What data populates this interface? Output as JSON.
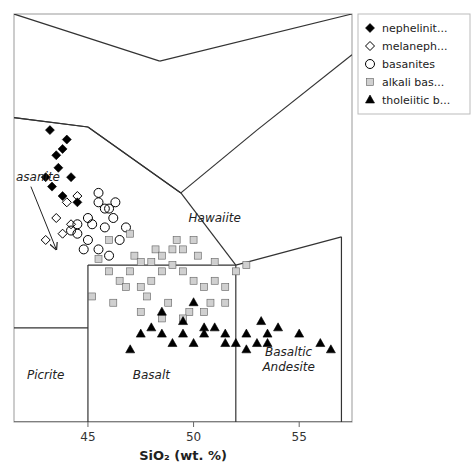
{
  "chart_data": {
    "type": "scatter",
    "xlabel": "SiO₂ (wt. %)",
    "xlim": [
      41.5,
      57.5
    ],
    "ylim": [
      0,
      13
    ],
    "xticks": [
      45,
      50,
      55
    ],
    "yticks": [],
    "tick_labels": "x",
    "grid": false,
    "legend": "upper right",
    "series": [
      {
        "name": "nephelinit...",
        "marker": "diamond",
        "color": "black",
        "x": [
          43.2,
          43.5,
          43.6,
          43.8,
          43.0,
          43.3,
          43.8,
          44.2,
          44.5,
          44.0
        ],
        "values": [
          9.3,
          8.5,
          8.1,
          8.7,
          7.8,
          7.5,
          7.2,
          7.8,
          7.0,
          9.0
        ]
      },
      {
        "name": "melaneph...",
        "marker": "diamond-open",
        "color": "black",
        "x": [
          43.5,
          44.0,
          43.8,
          44.5,
          44.2,
          43.0
        ],
        "values": [
          6.5,
          7.0,
          6.0,
          7.2,
          6.3,
          5.8
        ]
      },
      {
        "name": "basanites",
        "marker": "circle-open",
        "color": "black",
        "x": [
          44.5,
          45.0,
          45.5,
          46.0,
          45.8,
          44.8,
          45.2,
          46.2,
          46.5,
          45.5,
          46.0,
          44.5,
          45.0,
          46.8,
          45.8,
          46.3,
          44.2,
          45.5
        ],
        "values": [
          6.0,
          6.5,
          7.0,
          6.8,
          6.2,
          5.5,
          6.3,
          6.5,
          5.8,
          5.5,
          5.3,
          6.3,
          5.8,
          6.2,
          6.8,
          7.0,
          6.1,
          7.3
        ]
      },
      {
        "name": "alkali bas...",
        "marker": "square",
        "color": "#d0d0d0",
        "x": [
          45.5,
          46.0,
          46.5,
          47.0,
          47.5,
          48.0,
          48.5,
          49.0,
          49.5,
          50.0,
          50.5,
          51.0,
          47.2,
          48.2,
          49.2,
          50.2,
          46.8,
          47.8,
          48.8,
          49.8,
          50.8,
          51.5,
          52.0,
          52.5,
          45.2,
          46.2,
          47.5,
          48.5,
          49.5,
          50.5,
          51.5,
          46.0,
          47.0,
          48.0,
          49.0,
          50.0,
          51.0,
          47.5,
          48.5,
          49.5
        ],
        "values": [
          5.2,
          4.8,
          4.5,
          4.8,
          4.3,
          4.5,
          4.8,
          5.0,
          4.8,
          4.5,
          4.3,
          4.5,
          5.3,
          5.5,
          5.8,
          5.3,
          4.3,
          4.0,
          3.8,
          3.5,
          3.8,
          4.3,
          4.8,
          5.0,
          4.0,
          3.8,
          3.5,
          3.3,
          3.3,
          3.5,
          3.8,
          5.8,
          6.0,
          5.1,
          5.5,
          5.8,
          5.1,
          5.1,
          5.3,
          5.5
        ]
      },
      {
        "name": "tholeiitic b...",
        "marker": "triangle",
        "color": "black",
        "x": [
          47.5,
          48.0,
          48.5,
          49.0,
          49.5,
          50.0,
          50.5,
          51.0,
          51.5,
          52.0,
          52.5,
          53.0,
          53.5,
          54.0,
          55.0,
          56.0,
          48.5,
          49.5,
          50.5,
          51.5,
          52.5,
          53.5,
          47.0,
          50.0,
          53.2,
          56.5
        ],
        "values": [
          2.8,
          3.0,
          2.8,
          2.5,
          2.8,
          2.5,
          2.8,
          3.0,
          2.8,
          2.5,
          2.8,
          2.5,
          2.8,
          3.0,
          2.8,
          2.5,
          3.5,
          3.2,
          3.0,
          2.5,
          2.3,
          2.5,
          2.3,
          3.8,
          3.2,
          2.3
        ]
      }
    ],
    "boundaries": [
      {
        "x": [
          41.5,
          45.0
        ],
        "y": [
          0,
          0
        ]
      },
      {
        "x": [
          45.0,
          52.0
        ],
        "y": [
          0,
          0
        ]
      },
      {
        "x": [
          52.0,
          57.5
        ],
        "y": [
          0,
          0
        ]
      },
      {
        "x": [
          45.0,
          45.0
        ],
        "y": [
          0,
          5.0
        ]
      },
      {
        "x": [
          41.5,
          45.0
        ],
        "y": [
          3.0,
          3.0
        ]
      },
      {
        "x": [
          52.0,
          52.0
        ],
        "y": [
          0,
          5.0
        ]
      },
      {
        "x": [
          57.0,
          57.0
        ],
        "y": [
          0,
          5.9
        ]
      },
      {
        "x": [
          45.0,
          52.0
        ],
        "y": [
          5.0,
          5.0
        ]
      },
      {
        "x": [
          52.0,
          57.0
        ],
        "y": [
          5.0,
          5.9
        ]
      },
      {
        "x": [
          41.5,
          45.0
        ],
        "y": [
          9.7,
          9.4
        ]
      },
      {
        "x": [
          45.0,
          41.5
        ],
        "y": [
          9.4,
          9.7
        ]
      },
      {
        "x": [
          45.0,
          49.4
        ],
        "y": [
          9.4,
          7.3
        ]
      },
      {
        "x": [
          49.4,
          53.0
        ],
        "y": [
          7.3,
          9.3
        ]
      },
      {
        "x": [
          53.0,
          57.5
        ],
        "y": [
          9.3,
          11.7
        ]
      },
      {
        "x": [
          41.5,
          48.4
        ],
        "y": [
          13.0,
          11.5
        ]
      },
      {
        "x": [
          48.4,
          57.5
        ],
        "y": [
          11.5,
          13.0
        ]
      },
      {
        "x": [
          49.4,
          52.0
        ],
        "y": [
          7.3,
          5.0
        ]
      },
      {
        "x": [
          45.0,
          49.4
        ],
        "y": [
          9.4,
          7.3
        ]
      }
    ],
    "annotations": [
      {
        "text": "Picrite",
        "x": 43.0,
        "y": 1.5
      },
      {
        "text": "Basalt",
        "x": 48.0,
        "y": 1.5
      },
      {
        "text": "Basaltic\nAndesite",
        "x": 54.5,
        "y": 2.0
      },
      {
        "text": "Hawaiite",
        "x": 51.0,
        "y": 6.5
      },
      {
        "text": "asanite",
        "x": 41.5,
        "y": 7.8,
        "align": "left"
      }
    ],
    "arrows": [
      {
        "x": [
          42.3,
          43.5
        ],
        "y": [
          7.5,
          5.5
        ]
      }
    ]
  }
}
